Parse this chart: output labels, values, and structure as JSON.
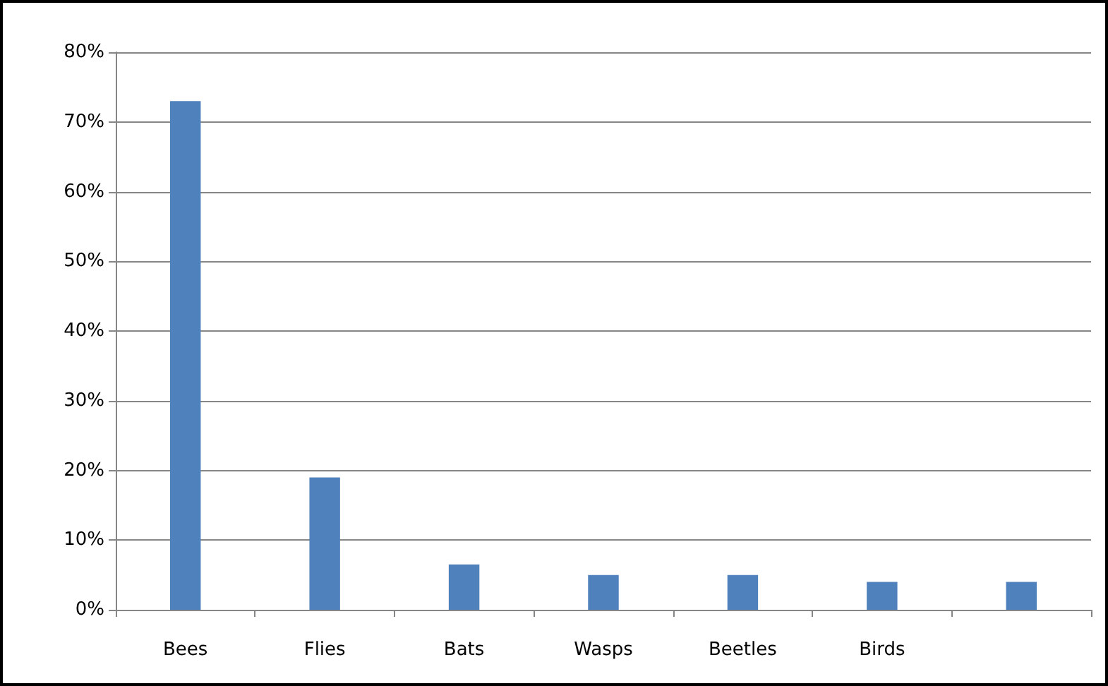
{
  "chart_data": {
    "type": "bar",
    "categories": [
      "Bees",
      "Flies",
      "Bats",
      "Wasps",
      "Beetles",
      "Birds",
      null
    ],
    "values": [
      73,
      19,
      6.5,
      5,
      5,
      4,
      4
    ],
    "color": "#4f81bd",
    "ylim": [
      0,
      80
    ],
    "yticks": [
      {
        "value": 0,
        "label": "0%"
      },
      {
        "value": 10,
        "label": "10%"
      },
      {
        "value": 20,
        "label": "20%"
      },
      {
        "value": 30,
        "label": "30%"
      },
      {
        "value": 40,
        "label": "40%"
      },
      {
        "value": 50,
        "label": "50%"
      },
      {
        "value": 60,
        "label": "60%"
      },
      {
        "value": 70,
        "label": "70%"
      },
      {
        "value": 80,
        "label": "80%"
      }
    ],
    "grid": "y"
  }
}
